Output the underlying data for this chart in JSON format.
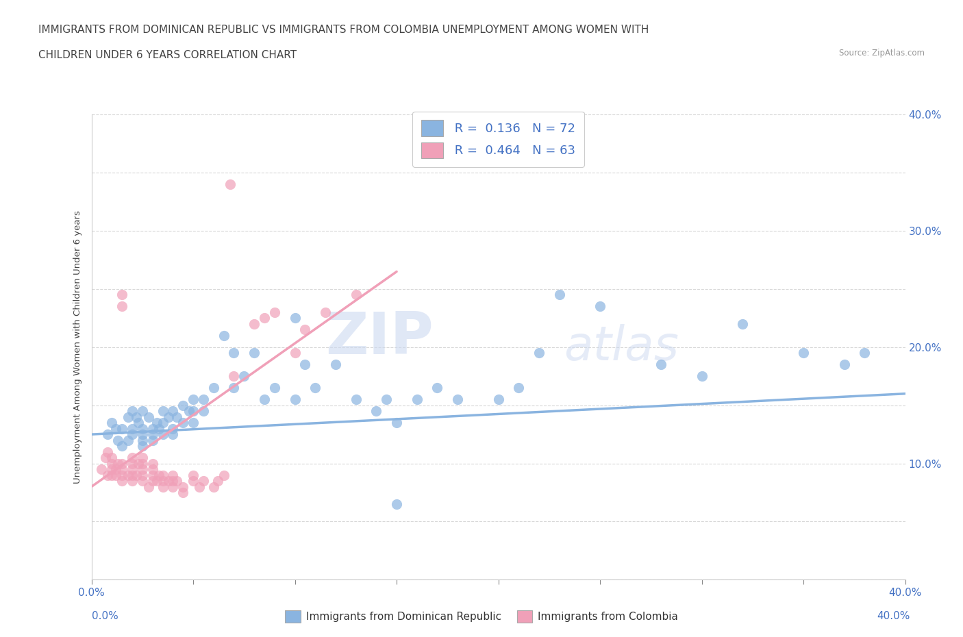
{
  "title_line1": "IMMIGRANTS FROM DOMINICAN REPUBLIC VS IMMIGRANTS FROM COLOMBIA UNEMPLOYMENT AMONG WOMEN WITH",
  "title_line2": "CHILDREN UNDER 6 YEARS CORRELATION CHART",
  "source_text": "Source: ZipAtlas.com",
  "ylabel": "Unemployment Among Women with Children Under 6 years",
  "xmin": 0.0,
  "xmax": 0.4,
  "ymin": 0.0,
  "ymax": 0.4,
  "xticks": [
    0.0,
    0.05,
    0.1,
    0.15,
    0.2,
    0.25,
    0.3,
    0.35,
    0.4
  ],
  "yticks": [
    0.0,
    0.05,
    0.1,
    0.15,
    0.2,
    0.25,
    0.3,
    0.35,
    0.4
  ],
  "xtick_labels": [
    "0.0%",
    "",
    "",
    "",
    "",
    "",
    "",
    "",
    "40.0%"
  ],
  "ytick_labels_right": [
    "",
    "",
    "10.0%",
    "",
    "20.0%",
    "",
    "30.0%",
    "",
    "40.0%"
  ],
  "color_blue": "#8ab4e0",
  "color_pink": "#f0a0b8",
  "R_blue": 0.136,
  "N_blue": 72,
  "R_pink": 0.464,
  "N_pink": 63,
  "blue_scatter": [
    [
      0.008,
      0.125
    ],
    [
      0.01,
      0.135
    ],
    [
      0.012,
      0.13
    ],
    [
      0.013,
      0.12
    ],
    [
      0.015,
      0.13
    ],
    [
      0.015,
      0.115
    ],
    [
      0.018,
      0.14
    ],
    [
      0.018,
      0.12
    ],
    [
      0.02,
      0.145
    ],
    [
      0.02,
      0.13
    ],
    [
      0.02,
      0.125
    ],
    [
      0.022,
      0.14
    ],
    [
      0.023,
      0.135
    ],
    [
      0.025,
      0.145
    ],
    [
      0.025,
      0.13
    ],
    [
      0.025,
      0.125
    ],
    [
      0.025,
      0.12
    ],
    [
      0.025,
      0.115
    ],
    [
      0.028,
      0.14
    ],
    [
      0.03,
      0.13
    ],
    [
      0.03,
      0.125
    ],
    [
      0.03,
      0.12
    ],
    [
      0.032,
      0.135
    ],
    [
      0.033,
      0.13
    ],
    [
      0.035,
      0.145
    ],
    [
      0.035,
      0.135
    ],
    [
      0.035,
      0.125
    ],
    [
      0.038,
      0.14
    ],
    [
      0.04,
      0.145
    ],
    [
      0.04,
      0.13
    ],
    [
      0.04,
      0.125
    ],
    [
      0.042,
      0.14
    ],
    [
      0.045,
      0.15
    ],
    [
      0.045,
      0.135
    ],
    [
      0.048,
      0.145
    ],
    [
      0.05,
      0.155
    ],
    [
      0.05,
      0.145
    ],
    [
      0.05,
      0.135
    ],
    [
      0.055,
      0.155
    ],
    [
      0.055,
      0.145
    ],
    [
      0.06,
      0.165
    ],
    [
      0.065,
      0.21
    ],
    [
      0.07,
      0.195
    ],
    [
      0.07,
      0.165
    ],
    [
      0.075,
      0.175
    ],
    [
      0.08,
      0.195
    ],
    [
      0.085,
      0.155
    ],
    [
      0.09,
      0.165
    ],
    [
      0.1,
      0.225
    ],
    [
      0.1,
      0.155
    ],
    [
      0.105,
      0.185
    ],
    [
      0.11,
      0.165
    ],
    [
      0.12,
      0.185
    ],
    [
      0.13,
      0.155
    ],
    [
      0.14,
      0.145
    ],
    [
      0.145,
      0.155
    ],
    [
      0.15,
      0.065
    ],
    [
      0.15,
      0.135
    ],
    [
      0.16,
      0.155
    ],
    [
      0.17,
      0.165
    ],
    [
      0.18,
      0.155
    ],
    [
      0.2,
      0.155
    ],
    [
      0.21,
      0.165
    ],
    [
      0.22,
      0.195
    ],
    [
      0.23,
      0.245
    ],
    [
      0.25,
      0.235
    ],
    [
      0.28,
      0.185
    ],
    [
      0.3,
      0.175
    ],
    [
      0.32,
      0.22
    ],
    [
      0.35,
      0.195
    ],
    [
      0.37,
      0.185
    ],
    [
      0.38,
      0.195
    ]
  ],
  "pink_scatter": [
    [
      0.005,
      0.095
    ],
    [
      0.007,
      0.105
    ],
    [
      0.008,
      0.09
    ],
    [
      0.008,
      0.11
    ],
    [
      0.01,
      0.09
    ],
    [
      0.01,
      0.095
    ],
    [
      0.01,
      0.1
    ],
    [
      0.01,
      0.105
    ],
    [
      0.012,
      0.09
    ],
    [
      0.012,
      0.095
    ],
    [
      0.013,
      0.1
    ],
    [
      0.015,
      0.085
    ],
    [
      0.015,
      0.09
    ],
    [
      0.015,
      0.095
    ],
    [
      0.015,
      0.1
    ],
    [
      0.015,
      0.235
    ],
    [
      0.015,
      0.245
    ],
    [
      0.018,
      0.09
    ],
    [
      0.02,
      0.085
    ],
    [
      0.02,
      0.09
    ],
    [
      0.02,
      0.095
    ],
    [
      0.02,
      0.1
    ],
    [
      0.02,
      0.105
    ],
    [
      0.022,
      0.09
    ],
    [
      0.023,
      0.1
    ],
    [
      0.025,
      0.085
    ],
    [
      0.025,
      0.09
    ],
    [
      0.025,
      0.095
    ],
    [
      0.025,
      0.1
    ],
    [
      0.025,
      0.105
    ],
    [
      0.028,
      0.08
    ],
    [
      0.03,
      0.085
    ],
    [
      0.03,
      0.09
    ],
    [
      0.03,
      0.095
    ],
    [
      0.03,
      0.1
    ],
    [
      0.032,
      0.085
    ],
    [
      0.033,
      0.09
    ],
    [
      0.035,
      0.08
    ],
    [
      0.035,
      0.085
    ],
    [
      0.035,
      0.09
    ],
    [
      0.038,
      0.085
    ],
    [
      0.04,
      0.08
    ],
    [
      0.04,
      0.085
    ],
    [
      0.04,
      0.09
    ],
    [
      0.042,
      0.085
    ],
    [
      0.045,
      0.075
    ],
    [
      0.045,
      0.08
    ],
    [
      0.05,
      0.085
    ],
    [
      0.05,
      0.09
    ],
    [
      0.053,
      0.08
    ],
    [
      0.055,
      0.085
    ],
    [
      0.06,
      0.08
    ],
    [
      0.062,
      0.085
    ],
    [
      0.065,
      0.09
    ],
    [
      0.068,
      0.34
    ],
    [
      0.07,
      0.175
    ],
    [
      0.08,
      0.22
    ],
    [
      0.085,
      0.225
    ],
    [
      0.09,
      0.23
    ],
    [
      0.1,
      0.195
    ],
    [
      0.105,
      0.215
    ],
    [
      0.115,
      0.23
    ],
    [
      0.13,
      0.245
    ]
  ],
  "watermark_zip": "ZIP",
  "watermark_atlas": "atlas",
  "grid_color": "#d8d8d8",
  "trend_blue_x0": 0.0,
  "trend_blue_x1": 0.4,
  "trend_blue_y0": 0.125,
  "trend_blue_y1": 0.16,
  "trend_pink_x0": 0.0,
  "trend_pink_x1": 0.15,
  "trend_pink_y0": 0.08,
  "trend_pink_y1": 0.265
}
